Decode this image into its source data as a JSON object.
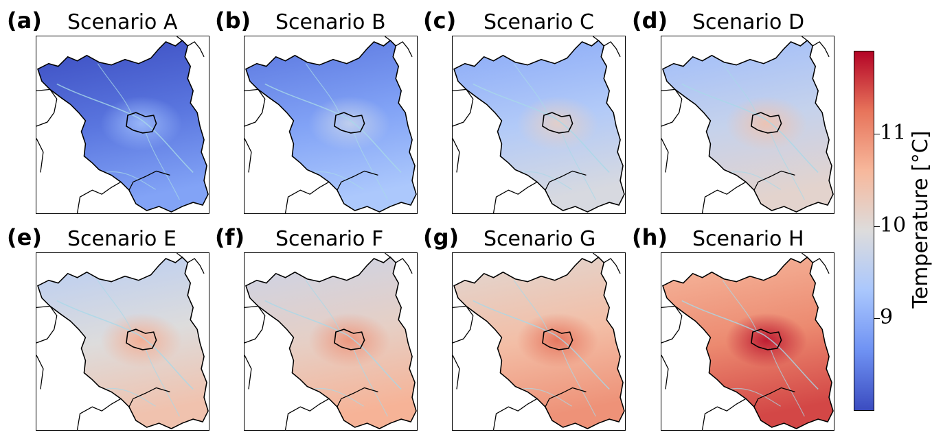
{
  "panels": [
    {
      "label": "(a)",
      "title": "Scenario A",
      "level": 0.1
    },
    {
      "label": "(b)",
      "title": "Scenario B",
      "level": 0.22
    },
    {
      "label": "(c)",
      "title": "Scenario C",
      "level": 0.36
    },
    {
      "label": "(d)",
      "title": "Scenario D",
      "level": 0.42
    },
    {
      "label": "(e)",
      "title": "Scenario E",
      "level": 0.5
    },
    {
      "label": "(f)",
      "title": "Scenario F",
      "level": 0.56
    },
    {
      "label": "(g)",
      "title": "Scenario G",
      "level": 0.64
    },
    {
      "label": "(h)",
      "title": "Scenario H",
      "level": 0.78
    }
  ],
  "colorbar": {
    "label": "Temperature [°C]",
    "colormap": "coolwarm",
    "vmin": 8.0,
    "vmax": 11.9,
    "ticks": [
      {
        "value": 9,
        "label": "9"
      },
      {
        "value": 10,
        "label": "10"
      },
      {
        "value": 11,
        "label": "11"
      }
    ],
    "colors": [
      "#3b4cc0",
      "#6f92f3",
      "#aac7fd",
      "#dddcdc",
      "#f7b89c",
      "#e7745b",
      "#b40426"
    ]
  }
}
